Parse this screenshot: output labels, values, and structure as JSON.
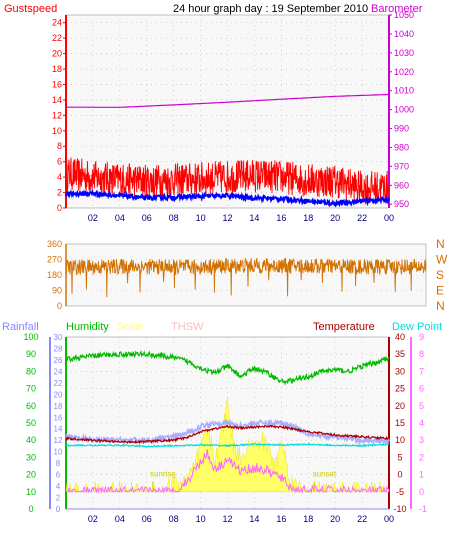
{
  "header": {
    "title": "24 hour graph day : 19 September 2010",
    "left_label": "Gustspeed",
    "right_label": "Barometer"
  },
  "colors": {
    "gust": "#ff0000",
    "wind": "#0000ff",
    "barometer": "#cc00cc",
    "direction": "#d27000",
    "humidity": "#00bb00",
    "solar": "#ffff66",
    "thsw": "#ffbbbb",
    "temperature": "#aa0000",
    "dewpoint": "#00dddd",
    "rainfall": "#8888ff",
    "uv": "#ff66ff",
    "grid": "#bbbbbb",
    "plot_bg": "#f8f8f8"
  },
  "x_ticks": [
    "02",
    "04",
    "06",
    "08",
    "10",
    "12",
    "14",
    "16",
    "18",
    "20",
    "22",
    "00"
  ],
  "chart_data": [
    {
      "type": "line",
      "name": "wind",
      "x_range": [
        0,
        24
      ],
      "left_axis": {
        "label": "Gustspeed",
        "range": [
          0,
          25
        ],
        "ticks": [
          0,
          2,
          4,
          6,
          8,
          10,
          12,
          14,
          16,
          18,
          20,
          22,
          24
        ]
      },
      "right_axis": {
        "label": "Barometer",
        "range": [
          948,
          1050
        ],
        "ticks": [
          950,
          960,
          970,
          980,
          990,
          1000,
          1010,
          1020,
          1030,
          1040,
          1050
        ]
      },
      "series": [
        {
          "name": "Gustspeed",
          "axis": "left",
          "x": [
            0,
            2,
            4,
            6,
            8,
            10,
            12,
            14,
            16,
            18,
            20,
            22,
            24
          ],
          "y": [
            4.5,
            4.0,
            3.7,
            3.5,
            3.6,
            3.8,
            4.0,
            4.2,
            4.0,
            3.6,
            3.5,
            2.6,
            2.7
          ],
          "jitter": 2.2
        },
        {
          "name": "Windspeed",
          "axis": "left",
          "x": [
            0,
            2,
            4,
            6,
            8,
            10,
            12,
            14,
            16,
            18,
            20,
            22,
            24
          ],
          "y": [
            1.8,
            1.9,
            1.6,
            1.3,
            1.4,
            1.5,
            1.6,
            1.3,
            1.2,
            0.9,
            0.6,
            0.9,
            1.1
          ],
          "jitter": 0.3
        },
        {
          "name": "Barometer",
          "axis": "right",
          "x": [
            0,
            4,
            8,
            12,
            16,
            20,
            24
          ],
          "y": [
            1001.3,
            1001.2,
            1002.5,
            1003.9,
            1005.5,
            1007.0,
            1008.0
          ],
          "jitter": 0
        }
      ]
    },
    {
      "type": "scatter",
      "name": "direction",
      "x_range": [
        0,
        24
      ],
      "left_axis": {
        "range": [
          0,
          360
        ],
        "ticks": [
          0,
          90,
          180,
          270,
          360
        ]
      },
      "right_axis": {
        "labels": [
          "N",
          "W",
          "S",
          "E",
          "N"
        ]
      },
      "series": [
        {
          "name": "Wind direction",
          "x": [
            0,
            4,
            8,
            12,
            16,
            20,
            24
          ],
          "y": [
            225,
            230,
            225,
            235,
            232,
            228,
            228
          ],
          "jitter": 45
        }
      ]
    },
    {
      "type": "line",
      "name": "temperature",
      "x_range": [
        0,
        24
      ],
      "legend": [
        "Rainfall",
        "Humidity",
        "Solar",
        "THSW",
        "Temperature",
        "Dew Point"
      ],
      "axes": {
        "humidity": {
          "range": [
            0,
            100
          ],
          "ticks": [
            0,
            10,
            20,
            30,
            40,
            50,
            60,
            70,
            80,
            90,
            100
          ]
        },
        "rainfall": {
          "range": [
            0,
            30
          ],
          "ticks": [
            0,
            2,
            4,
            6,
            8,
            10,
            12,
            14,
            16,
            18,
            20,
            22,
            24,
            26,
            28,
            30
          ]
        },
        "temperature": {
          "range": [
            -10,
            40
          ],
          "ticks": [
            -10,
            -5,
            0,
            5,
            10,
            15,
            20,
            25,
            30,
            35,
            40
          ]
        },
        "uv": {
          "range": [
            -1,
            9
          ],
          "ticks": [
            -1,
            0,
            1,
            2,
            3,
            4,
            5,
            6,
            7,
            8,
            9
          ]
        }
      },
      "series": [
        {
          "name": "Humidity",
          "axis": "humidity",
          "x": [
            0,
            2,
            4,
            6,
            8,
            9,
            10,
            11,
            12,
            13,
            14,
            15,
            16,
            17,
            18,
            19,
            20,
            21,
            22,
            23,
            24
          ],
          "y": [
            87,
            89,
            90,
            90,
            88,
            86,
            82,
            79,
            83,
            77,
            82,
            79,
            74,
            75,
            77,
            80,
            81,
            80,
            83,
            85,
            88
          ],
          "jitter": 1.5
        },
        {
          "name": "Temperature",
          "axis": "temperature",
          "x": [
            0,
            2,
            4,
            6,
            8,
            9,
            10,
            11,
            12,
            13,
            14,
            15,
            16,
            17,
            18,
            19,
            20,
            22,
            24
          ],
          "y": [
            10.5,
            10.0,
            9.5,
            9.6,
            10.0,
            10.8,
            12.5,
            13.3,
            14.0,
            13.5,
            13.8,
            14.1,
            13.8,
            13.2,
            12.5,
            12.0,
            11.5,
            11.0,
            10.5
          ],
          "jitter": 0.3
        },
        {
          "name": "THSW",
          "axis": "temperature",
          "x": [
            0,
            2,
            4,
            6,
            8,
            9,
            10,
            11,
            12,
            13,
            14,
            15,
            16,
            17,
            18,
            19,
            20,
            22,
            24
          ],
          "y": [
            11,
            10,
            10,
            10,
            11,
            12,
            14,
            15,
            15,
            14,
            15,
            15,
            15,
            14,
            12,
            11,
            11,
            10,
            10
          ],
          "jitter": 0.8
        },
        {
          "name": "Dew Point",
          "axis": "temperature",
          "x": [
            0,
            2,
            4,
            6,
            8,
            10,
            12,
            14,
            16,
            18,
            20,
            22,
            24
          ],
          "y": [
            8.5,
            8.5,
            8.5,
            8.2,
            8.4,
            8.6,
            8.4,
            8.8,
            8.6,
            8.8,
            8.5,
            8.4,
            8.8
          ],
          "jitter": 0.2
        },
        {
          "name": "Rainfall",
          "axis": "rainfall",
          "x": [
            0,
            24
          ],
          "y": [
            0,
            0
          ],
          "jitter": 0
        },
        {
          "name": "Solar",
          "axis": "uv",
          "x": [
            0,
            6.5,
            7,
            7.5,
            8,
            9,
            9.5,
            10,
            10.5,
            11,
            11.5,
            12,
            12.5,
            13,
            13.5,
            14,
            14.5,
            15,
            15.5,
            16,
            16.5,
            17,
            18,
            18.5,
            24
          ],
          "y": [
            0,
            0,
            0.05,
            0.2,
            0.5,
            0.7,
            1.3,
            2.5,
            3.6,
            2.0,
            3.0,
            5.2,
            2.5,
            2.0,
            2.8,
            2.5,
            3.0,
            2.7,
            1.4,
            3.0,
            1.2,
            0.3,
            0.1,
            0,
            0
          ],
          "jitter": 0.6
        },
        {
          "name": "UV",
          "axis": "uv",
          "x": [
            0,
            8,
            8.5,
            9,
            9.5,
            10,
            10.5,
            11,
            11.5,
            12,
            12.5,
            13,
            13.5,
            14,
            14.5,
            15,
            15.5,
            16,
            16.5,
            17,
            24
          ],
          "y": [
            0,
            0,
            0.3,
            0.6,
            1.2,
            1.8,
            2.2,
            1.4,
            1.5,
            2.0,
            1.5,
            1.2,
            1.3,
            1.4,
            1.3,
            1.2,
            1.0,
            0.8,
            0.4,
            0.1,
            0
          ],
          "jitter": 0.3
        }
      ],
      "annotations": [
        {
          "text": "sunrise",
          "x": 7.2
        },
        {
          "text": "sunset",
          "x": 19.2
        }
      ]
    }
  ]
}
